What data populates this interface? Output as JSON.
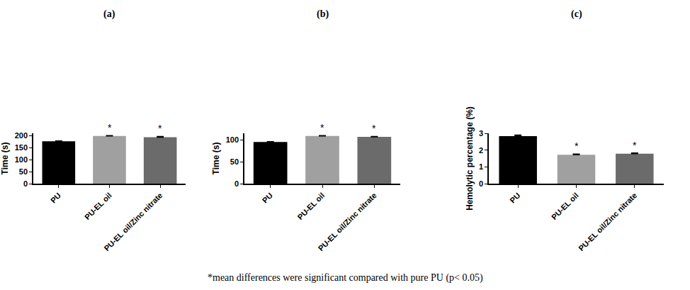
{
  "chart_data": [
    {
      "type": "bar",
      "title": "(a)",
      "y_label": "Time (s)",
      "categories": [
        "PU",
        "PU-EL oil",
        "PU-EL oil/Zinc nitrate"
      ],
      "values": [
        177,
        199,
        194
      ],
      "errors": [
        1.5,
        1.2,
        3
      ],
      "colors": [
        "#000000",
        "#a0a0a0",
        "#6b6b6b"
      ],
      "ylim": [
        0,
        210
      ],
      "yticks": [
        0,
        50,
        100,
        150,
        200
      ],
      "grid": false,
      "annotations": [
        {
          "category": "PU-EL oil",
          "text": "*"
        },
        {
          "category": "PU-EL oil/Zinc nitrate",
          "text": "*"
        }
      ]
    },
    {
      "type": "bar",
      "title": "(b)",
      "y_label": "Time (s)",
      "categories": [
        "PU",
        "PU-EL oil",
        "PU-EL oil/Zinc nitrate"
      ],
      "values": [
        95,
        109,
        107
      ],
      "errors": [
        1,
        0.8,
        0.8
      ],
      "colors": [
        "#000000",
        "#a0a0a0",
        "#6b6b6b"
      ],
      "ylim": [
        0,
        115
      ],
      "yticks": [
        0,
        50,
        100
      ],
      "grid": false,
      "annotations": [
        {
          "category": "PU-EL oil",
          "text": "*"
        },
        {
          "category": "PU-EL oil/Zinc nitrate",
          "text": "*"
        }
      ]
    },
    {
      "type": "bar",
      "title": "(c)",
      "y_label": "Hemolytic percentage (%)",
      "categories": [
        "PU",
        "PU-EL oil",
        "PU-EL oil/Zinc nitrate"
      ],
      "values": [
        2.83,
        1.72,
        1.79
      ],
      "errors": [
        0.06,
        0.04,
        0.04
      ],
      "colors": [
        "#000000",
        "#a0a0a0",
        "#6b6b6b"
      ],
      "ylim": [
        0,
        3
      ],
      "yticks": [
        0,
        1,
        2,
        3
      ],
      "grid": false,
      "annotations": [
        {
          "category": "PU-EL oil",
          "text": "*"
        },
        {
          "category": "PU-EL oil/Zinc nitrate",
          "text": "*"
        }
      ]
    }
  ],
  "footnote": "*mean differences were significant compared with pure PU (p< 0.05)"
}
